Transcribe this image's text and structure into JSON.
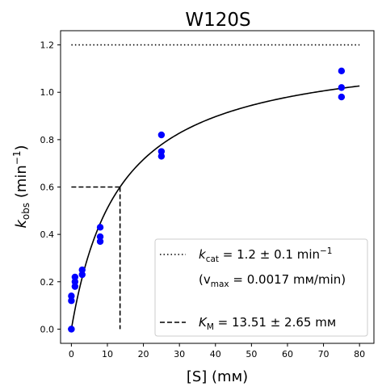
{
  "chart_data": {
    "type": "scatter",
    "title": "W120S",
    "xlabel": {
      "prefix": "[S] (",
      "unit": "mᴍ",
      "suffix": ")"
    },
    "ylabel": {
      "main": "k",
      "sub": "obs",
      "mid": " (min",
      "sup": "−1",
      "end": ")"
    },
    "xlim": [
      -3,
      84
    ],
    "ylim": [
      -0.06,
      1.26
    ],
    "xticks": [
      0,
      10,
      20,
      30,
      40,
      50,
      60,
      70,
      80
    ],
    "yticks": [
      0.0,
      0.2,
      0.4,
      0.6,
      0.8,
      1.0,
      1.2
    ],
    "grid": false,
    "legend_position": "lower-right",
    "series": [
      {
        "kind": "scatter",
        "color": "#0000ff",
        "points": [
          [
            0,
            0.0
          ],
          [
            0,
            0.0
          ],
          [
            0,
            0.12
          ],
          [
            0,
            0.14
          ],
          [
            1,
            0.18
          ],
          [
            1,
            0.2
          ],
          [
            1,
            0.22
          ],
          [
            3,
            0.23
          ],
          [
            3,
            0.25
          ],
          [
            8,
            0.37
          ],
          [
            8,
            0.39
          ],
          [
            8,
            0.43
          ],
          [
            25,
            0.73
          ],
          [
            25,
            0.75
          ],
          [
            25,
            0.82
          ],
          [
            75,
            0.98
          ],
          [
            75,
            1.02
          ],
          [
            75,
            1.09
          ]
        ]
      },
      {
        "kind": "fit_curve",
        "color": "#000000",
        "model": "michaelis-menten",
        "vmax": 1.2,
        "km": 13.51,
        "x_range": [
          0,
          80
        ]
      },
      {
        "kind": "hline_dotted",
        "color": "#000000",
        "y": 1.2,
        "x_range": [
          0,
          80
        ]
      },
      {
        "kind": "km_dashed",
        "color": "#000000",
        "x": 13.51,
        "y": 0.6,
        "x_start": 0,
        "y_floor": 0
      }
    ],
    "legend": {
      "kcat": {
        "symbol": "k",
        "sub": "cat",
        "text": " = 1.2 ± 0.1 min",
        "sup": "−1"
      },
      "vmax": {
        "open": "(v",
        "sub": "max",
        "text": " = 0.0017 mᴍ/min)"
      },
      "km": {
        "symbol": "K",
        "sub": "M",
        "text": " = 13.51 ± 2.65 mᴍ"
      }
    }
  }
}
